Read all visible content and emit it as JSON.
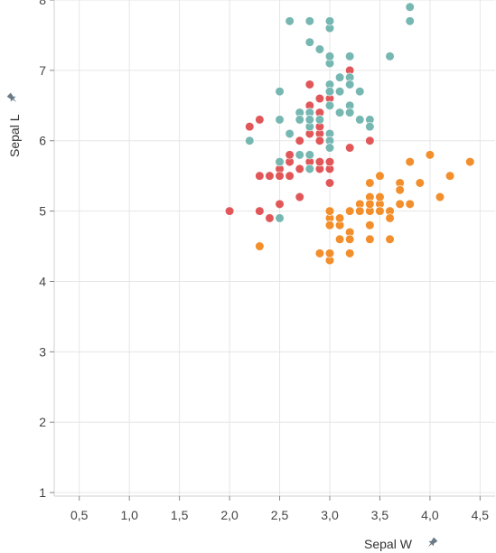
{
  "chart_data": {
    "type": "scatter",
    "xlabel": "Sepal W",
    "ylabel": "Sepal L",
    "xlim": [
      0.25,
      4.65
    ],
    "ylim": [
      0.95,
      8.0
    ],
    "x_ticks": [
      "0,5",
      "1,0",
      "1,5",
      "2,0",
      "2,5",
      "3,0",
      "3,5",
      "4,0",
      "4,5"
    ],
    "x_tick_values": [
      0.5,
      1.0,
      1.5,
      2.0,
      2.5,
      3.0,
      3.5,
      4.0,
      4.5
    ],
    "y_ticks": [
      "1",
      "2",
      "3",
      "4",
      "5",
      "6",
      "7",
      "8"
    ],
    "y_tick_values": [
      1,
      2,
      3,
      4,
      5,
      6,
      7,
      8
    ],
    "grid": true,
    "axis_icon": "pin-icon",
    "series": [
      {
        "color": "#f28e2b",
        "points": [
          [
            3.5,
            5.1
          ],
          [
            3.0,
            4.9
          ],
          [
            3.2,
            4.7
          ],
          [
            3.1,
            4.6
          ],
          [
            3.6,
            5.0
          ],
          [
            3.9,
            5.4
          ],
          [
            3.4,
            4.6
          ],
          [
            3.4,
            5.0
          ],
          [
            2.9,
            4.4
          ],
          [
            3.1,
            4.9
          ],
          [
            3.7,
            5.4
          ],
          [
            3.4,
            4.8
          ],
          [
            3.0,
            4.8
          ],
          [
            3.0,
            4.3
          ],
          [
            4.0,
            5.8
          ],
          [
            4.4,
            5.7
          ],
          [
            3.9,
            5.4
          ],
          [
            3.5,
            5.1
          ],
          [
            3.8,
            5.7
          ],
          [
            3.8,
            5.1
          ],
          [
            3.4,
            5.4
          ],
          [
            3.7,
            5.1
          ],
          [
            3.6,
            4.6
          ],
          [
            3.3,
            5.1
          ],
          [
            3.4,
            4.8
          ],
          [
            3.0,
            5.0
          ],
          [
            3.4,
            5.0
          ],
          [
            3.5,
            5.2
          ],
          [
            3.4,
            5.2
          ],
          [
            3.2,
            4.7
          ],
          [
            3.1,
            4.8
          ],
          [
            3.4,
            5.4
          ],
          [
            4.1,
            5.2
          ],
          [
            4.2,
            5.5
          ],
          [
            3.1,
            4.9
          ],
          [
            3.2,
            5.0
          ],
          [
            3.5,
            5.5
          ],
          [
            3.6,
            4.9
          ],
          [
            3.0,
            4.4
          ],
          [
            3.4,
            5.1
          ],
          [
            3.5,
            5.0
          ],
          [
            2.3,
            4.5
          ],
          [
            3.2,
            4.4
          ],
          [
            3.5,
            5.0
          ],
          [
            3.8,
            5.1
          ],
          [
            3.0,
            4.8
          ],
          [
            3.8,
            5.1
          ],
          [
            3.2,
            4.6
          ],
          [
            3.7,
            5.3
          ],
          [
            3.3,
            5.0
          ]
        ]
      },
      {
        "color": "#e15759",
        "points": [
          [
            3.2,
            7.0
          ],
          [
            3.2,
            6.4
          ],
          [
            3.1,
            6.9
          ],
          [
            2.3,
            5.5
          ],
          [
            2.8,
            6.5
          ],
          [
            2.8,
            5.7
          ],
          [
            3.3,
            6.3
          ],
          [
            2.4,
            4.9
          ],
          [
            2.9,
            6.6
          ],
          [
            2.7,
            5.2
          ],
          [
            2.0,
            5.0
          ],
          [
            3.0,
            5.9
          ],
          [
            2.2,
            6.0
          ],
          [
            2.9,
            6.1
          ],
          [
            2.9,
            5.6
          ],
          [
            3.1,
            6.7
          ],
          [
            3.0,
            5.6
          ],
          [
            2.7,
            5.8
          ],
          [
            2.2,
            6.2
          ],
          [
            2.5,
            5.6
          ],
          [
            3.2,
            5.9
          ],
          [
            2.8,
            6.1
          ],
          [
            2.5,
            6.3
          ],
          [
            2.8,
            6.1
          ],
          [
            2.9,
            6.4
          ],
          [
            3.0,
            6.6
          ],
          [
            2.8,
            6.8
          ],
          [
            3.0,
            6.7
          ],
          [
            2.9,
            6.0
          ],
          [
            2.6,
            5.7
          ],
          [
            2.4,
            5.5
          ],
          [
            2.4,
            5.5
          ],
          [
            2.7,
            5.8
          ],
          [
            2.7,
            6.0
          ],
          [
            3.0,
            5.4
          ],
          [
            3.4,
            6.0
          ],
          [
            3.1,
            6.7
          ],
          [
            2.3,
            6.3
          ],
          [
            3.0,
            5.6
          ],
          [
            2.5,
            5.5
          ],
          [
            2.6,
            5.5
          ],
          [
            3.0,
            6.1
          ],
          [
            2.6,
            5.8
          ],
          [
            2.3,
            5.0
          ],
          [
            2.7,
            5.6
          ],
          [
            3.0,
            5.7
          ],
          [
            2.9,
            5.7
          ],
          [
            2.9,
            6.2
          ],
          [
            2.5,
            5.1
          ],
          [
            2.8,
            5.7
          ]
        ]
      },
      {
        "color": "#76b7b2",
        "points": [
          [
            3.3,
            6.3
          ],
          [
            2.7,
            5.8
          ],
          [
            3.0,
            7.1
          ],
          [
            2.9,
            6.3
          ],
          [
            3.0,
            6.5
          ],
          [
            3.0,
            7.6
          ],
          [
            2.5,
            4.9
          ],
          [
            2.9,
            7.3
          ],
          [
            2.5,
            6.7
          ],
          [
            3.6,
            7.2
          ],
          [
            3.2,
            6.5
          ],
          [
            2.7,
            6.4
          ],
          [
            3.0,
            6.8
          ],
          [
            2.5,
            5.7
          ],
          [
            2.8,
            5.8
          ],
          [
            3.2,
            6.4
          ],
          [
            3.0,
            6.5
          ],
          [
            3.8,
            7.7
          ],
          [
            2.6,
            7.7
          ],
          [
            2.2,
            6.0
          ],
          [
            3.2,
            6.9
          ],
          [
            2.8,
            5.6
          ],
          [
            2.8,
            7.7
          ],
          [
            2.7,
            6.3
          ],
          [
            3.3,
            6.7
          ],
          [
            3.2,
            7.2
          ],
          [
            2.8,
            6.2
          ],
          [
            3.0,
            6.1
          ],
          [
            2.8,
            6.4
          ],
          [
            3.0,
            7.2
          ],
          [
            2.8,
            7.4
          ],
          [
            3.8,
            7.9
          ],
          [
            2.8,
            6.4
          ],
          [
            2.8,
            6.3
          ],
          [
            2.6,
            6.1
          ],
          [
            3.0,
            7.7
          ],
          [
            3.4,
            6.3
          ],
          [
            3.1,
            6.4
          ],
          [
            3.0,
            6.0
          ],
          [
            3.1,
            6.9
          ],
          [
            3.1,
            6.7
          ],
          [
            3.1,
            6.9
          ],
          [
            2.7,
            5.8
          ],
          [
            3.2,
            6.8
          ],
          [
            3.3,
            6.7
          ],
          [
            3.0,
            6.7
          ],
          [
            2.5,
            6.3
          ],
          [
            3.0,
            6.5
          ],
          [
            3.4,
            6.2
          ],
          [
            3.0,
            5.9
          ]
        ]
      }
    ]
  }
}
